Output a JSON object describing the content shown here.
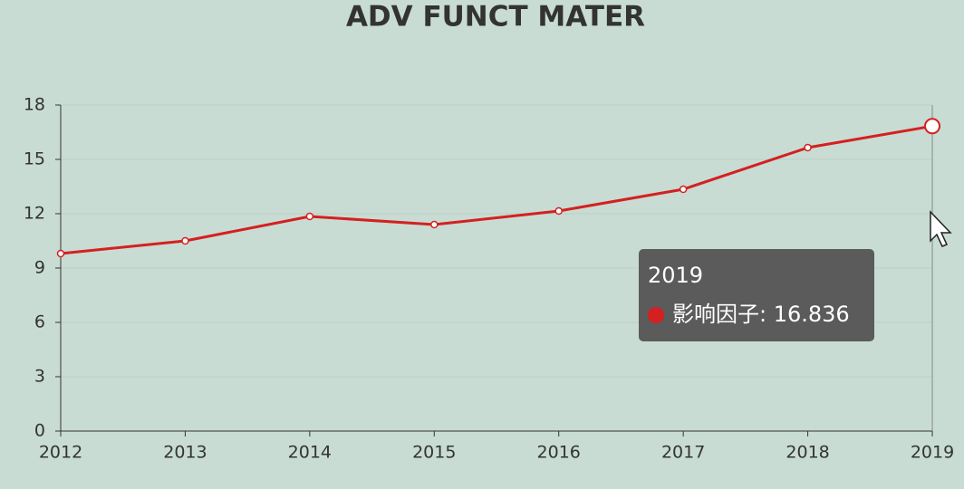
{
  "chart_data": {
    "type": "line",
    "title": "ADV FUNCT MATER",
    "categories": [
      "2012",
      "2013",
      "2014",
      "2015",
      "2016",
      "2017",
      "2018",
      "2019"
    ],
    "series": [
      {
        "name": "影响因子",
        "color": "#d42020",
        "values": [
          9.8,
          10.5,
          11.85,
          11.4,
          12.15,
          13.35,
          15.65,
          16.836
        ]
      }
    ],
    "ylim": [
      0,
      18
    ],
    "yticks": [
      0,
      3,
      6,
      9,
      12,
      15,
      18
    ],
    "grid": true,
    "tooltip": {
      "title": "2019",
      "text": "影响因子: 16.836"
    }
  }
}
